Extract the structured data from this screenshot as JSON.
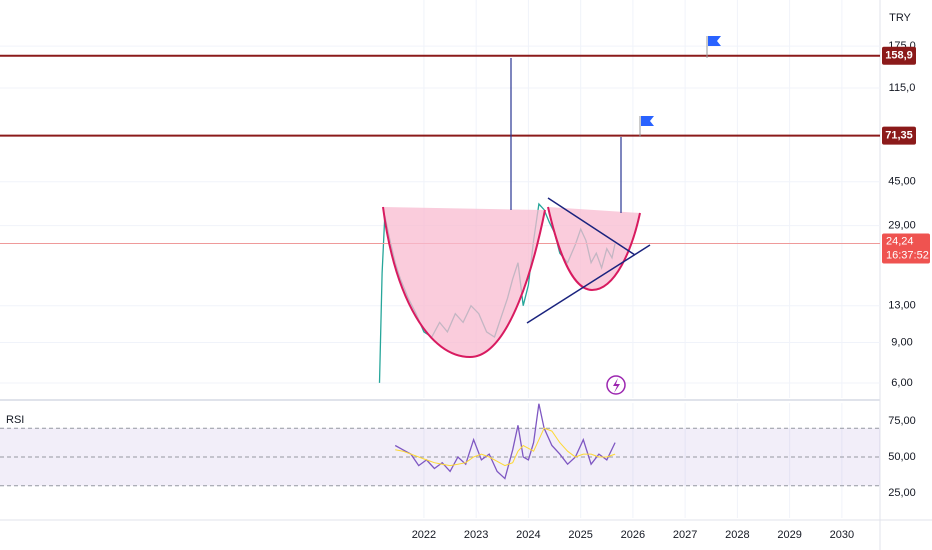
{
  "chart_data": [
    {
      "type": "line",
      "currency": "TRY",
      "log_scale": true,
      "grid": true,
      "color": "#26a69a",
      "x": [
        2021.15,
        2021.2,
        2021.25,
        2021.35,
        2021.45,
        2021.55,
        2021.7,
        2021.85,
        2022.0,
        2022.15,
        2022.3,
        2022.45,
        2022.6,
        2022.75,
        2022.9,
        2023.05,
        2023.2,
        2023.35,
        2023.5,
        2023.6,
        2023.7,
        2023.8,
        2023.9,
        2024.0,
        2024.1,
        2024.2,
        2024.3,
        2024.4,
        2024.5,
        2024.6,
        2024.75,
        2024.9,
        2025.0,
        2025.1,
        2025.2,
        2025.3,
        2025.4,
        2025.5,
        2025.6,
        2025.66
      ],
      "values": [
        6,
        18,
        32,
        25,
        20,
        17,
        14,
        12,
        10,
        9.5,
        11,
        10,
        12,
        11,
        13,
        12,
        10,
        9.5,
        12,
        14,
        17,
        20,
        13,
        16,
        25,
        36,
        34,
        30,
        27,
        22,
        20,
        24,
        28,
        25,
        20,
        22,
        19,
        23,
        21,
        24.24
      ],
      "xlim": [
        2013.885,
        2030.73
      ],
      "ylim": [
        5.16,
        277.6
      ],
      "yticks": [
        {
          "value": 6,
          "label": "6,00"
        },
        {
          "value": 9,
          "label": "9,00"
        },
        {
          "value": 13,
          "label": "13,00"
        },
        {
          "value": 29,
          "label": "29,00"
        },
        {
          "value": 45,
          "label": "45,00"
        },
        {
          "value": 115,
          "label": "115,0"
        },
        {
          "value": 175,
          "label": "175,0"
        }
      ],
      "levels": [
        {
          "value": 158.9,
          "label": "158,9"
        },
        {
          "value": 71.35,
          "label": "71,35"
        }
      ],
      "last_price": {
        "value": 24.24,
        "label": "24,24"
      },
      "countdown": "16:37:52"
    },
    {
      "type": "line",
      "title": "RSI",
      "grid": true,
      "x": [
        2021.45,
        2021.6,
        2021.75,
        2021.9,
        2022.05,
        2022.2,
        2022.35,
        2022.5,
        2022.65,
        2022.8,
        2022.95,
        2023.1,
        2023.25,
        2023.4,
        2023.55,
        2023.7,
        2023.8,
        2023.9,
        2024.0,
        2024.1,
        2024.2,
        2024.3,
        2024.45,
        2024.6,
        2024.75,
        2024.9,
        2025.05,
        2025.2,
        2025.35,
        2025.5,
        2025.66
      ],
      "series": [
        {
          "color": "#7e57c2",
          "values": [
            58,
            55,
            52,
            44,
            48,
            42,
            46,
            40,
            50,
            45,
            62,
            48,
            52,
            40,
            35,
            55,
            72,
            50,
            48,
            60,
            87,
            70,
            58,
            52,
            45,
            50,
            62,
            45,
            52,
            48,
            60
          ]
        },
        {
          "color": "#fdd835",
          "values": [
            55,
            54,
            52,
            50,
            48,
            46,
            45,
            44,
            45,
            46,
            50,
            52,
            50,
            47,
            44,
            46,
            54,
            58,
            56,
            54,
            62,
            70,
            68,
            60,
            54,
            50,
            52,
            52,
            50,
            50,
            52
          ]
        }
      ],
      "band": [
        30,
        70
      ],
      "midline": 50,
      "xlim": [
        2013.885,
        2030.73
      ],
      "ylim": [
        7.6,
        87.5
      ],
      "yticks": [
        {
          "value": 25,
          "label": "25,00"
        },
        {
          "value": 50,
          "label": "50,00"
        },
        {
          "value": 75,
          "label": "75,00"
        }
      ],
      "xticks": [
        2022,
        2023,
        2024,
        2025,
        2026,
        2027,
        2028,
        2029,
        2030
      ]
    }
  ]
}
